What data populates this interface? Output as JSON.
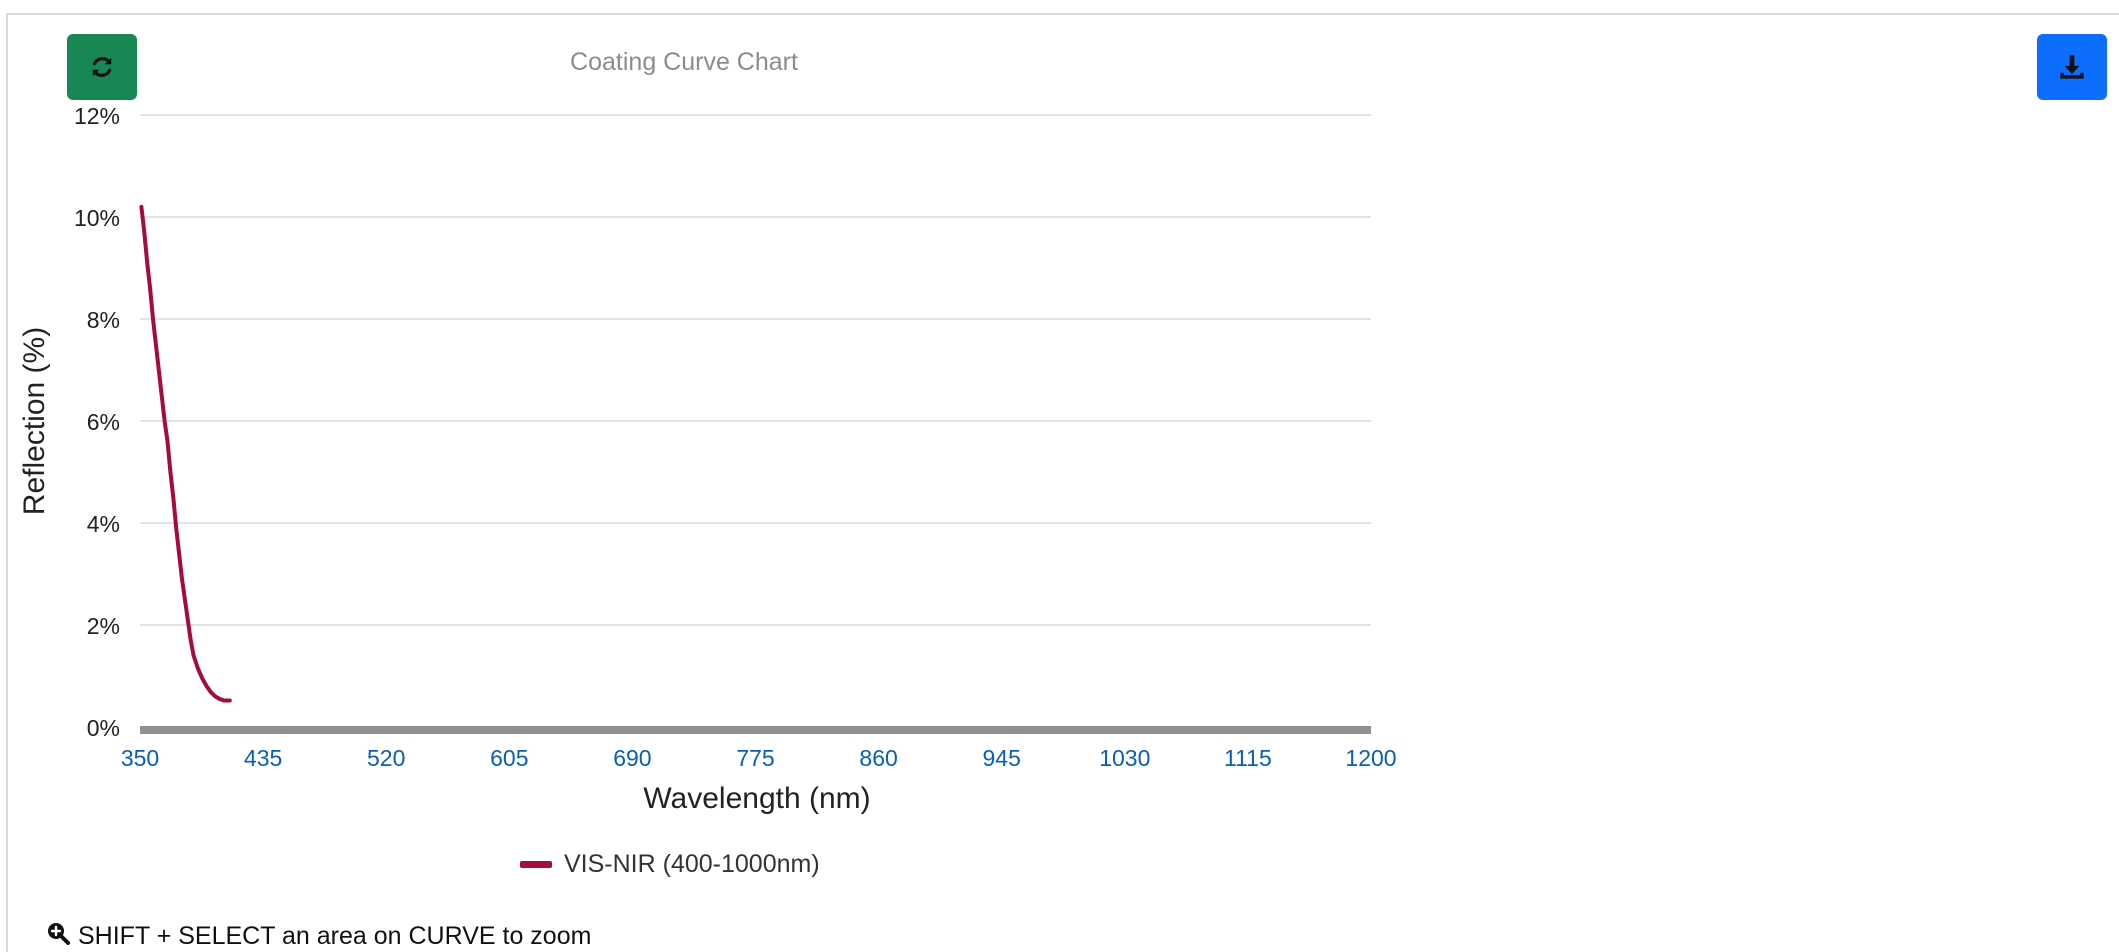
{
  "colors": {
    "refresh_button": "#198754",
    "download_button": "#0d6efd",
    "series": "#a50b3c",
    "x_tick_text": "#0a5fb4",
    "grid": "#e3e3e3",
    "x_axis": "#909090"
  },
  "toolbar": {
    "refresh_icon": "refresh-icon",
    "download_icon": "download-icon"
  },
  "hint": {
    "icon": "zoom-in-icon",
    "text": "SHIFT + SELECT an area on CURVE to zoom"
  },
  "chart_data": {
    "type": "line",
    "title": "Coating Curve Chart",
    "xlabel": "Wavelength (nm)",
    "ylabel": "Reflection (%)",
    "xlim": [
      350,
      1200
    ],
    "ylim": [
      0,
      12
    ],
    "x_ticks": [
      "350",
      "435",
      "520",
      "605",
      "690",
      "775",
      "860",
      "945",
      "1030",
      "1115",
      "1200"
    ],
    "y_ticks": [
      "0%",
      "2%",
      "4%",
      "6%",
      "8%",
      "10%",
      "12%"
    ],
    "grid": true,
    "legend_position": "bottom-center",
    "series": [
      {
        "name": "VIS-NIR (400-1000nm)",
        "x": [
          351,
          353,
          355,
          357,
          359,
          361,
          363,
          365,
          367,
          369,
          371,
          373,
          375,
          377,
          379,
          381,
          383,
          385,
          387,
          390,
          393,
          396,
          399,
          402,
          405,
          408,
          410,
          412
        ],
        "y": [
          10.2,
          9.7,
          9.1,
          8.6,
          8.0,
          7.5,
          7.0,
          6.5,
          6.0,
          5.6,
          5.0,
          4.5,
          3.9,
          3.4,
          2.9,
          2.5,
          2.1,
          1.7,
          1.4,
          1.15,
          0.95,
          0.8,
          0.68,
          0.6,
          0.55,
          0.52,
          0.52,
          0.52
        ]
      }
    ]
  }
}
